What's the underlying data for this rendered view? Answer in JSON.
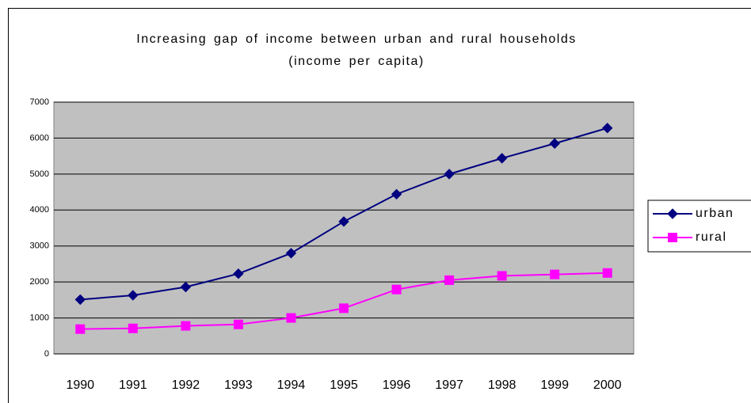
{
  "chart_data": {
    "type": "line",
    "title": "Increasing gap of income between urban and rural households (income per capita)",
    "categories": [
      "1990",
      "1991",
      "1992",
      "1993",
      "1994",
      "1995",
      "1996",
      "1997",
      "1998",
      "1999",
      "2000"
    ],
    "series": [
      {
        "name": "urban",
        "color": "#000080",
        "marker": "diamond",
        "values": [
          1510,
          1630,
          1860,
          2230,
          2800,
          3680,
          4440,
          5000,
          5440,
          5850,
          6280
        ]
      },
      {
        "name": "rural",
        "color": "#ff00ff",
        "marker": "square",
        "values": [
          690,
          710,
          780,
          820,
          1000,
          1270,
          1790,
          2050,
          2170,
          2210,
          2250
        ]
      }
    ],
    "ylim": [
      0,
      7000
    ],
    "yticks": [
      0,
      1000,
      2000,
      3000,
      4000,
      5000,
      6000,
      7000
    ],
    "grid": true,
    "plot_background": "#c0c0c0",
    "legend": "right"
  }
}
